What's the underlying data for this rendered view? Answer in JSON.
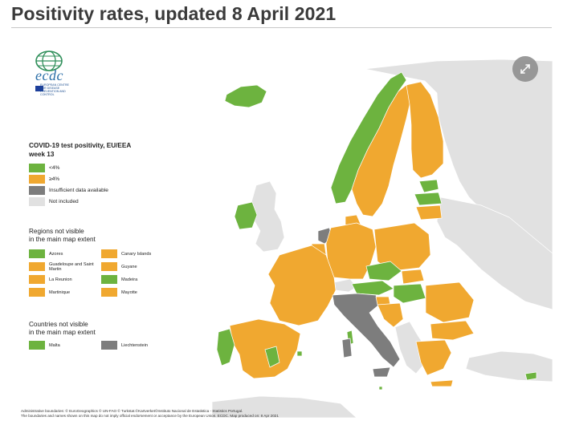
{
  "page": {
    "title": "Positivity rates, updated 8 April 2021"
  },
  "logo": {
    "wordmark": "ecdc",
    "organization": "EUROPEAN CENTRE FOR DISEASE PREVENTION AND CONTROL"
  },
  "colors": {
    "low": "#6db33f",
    "high": "#f0a830",
    "insufficient": "#7d7d7d",
    "not_included": "#e1e1e1",
    "sea": "#ffffff",
    "border": "#ffffff"
  },
  "legend": {
    "title_line1": "COVID-19 test positivity, EU/EEA",
    "title_line2": "week 13",
    "items": [
      {
        "label": "<4%",
        "color": "#6db33f"
      },
      {
        "label": "≥4%",
        "color": "#f0a830"
      },
      {
        "label": "Insufficient data available",
        "color": "#7d7d7d"
      },
      {
        "label": "Not included",
        "color": "#e1e1e1"
      }
    ]
  },
  "regions_not_visible": {
    "title_line1": "Regions not visible",
    "title_line2": "in the main map extent",
    "items": [
      {
        "label": "Azores",
        "color": "#6db33f"
      },
      {
        "label": "Canary Islands",
        "color": "#f0a830"
      },
      {
        "label": "Guadeloupe and Saint Martin",
        "color": "#f0a830"
      },
      {
        "label": "Guyane",
        "color": "#f0a830"
      },
      {
        "label": "La Reunion",
        "color": "#f0a830"
      },
      {
        "label": "Madeira",
        "color": "#6db33f"
      },
      {
        "label": "Martinique",
        "color": "#f0a830"
      },
      {
        "label": "Mayotte",
        "color": "#f0a830"
      }
    ]
  },
  "countries_not_visible": {
    "title_line1": "Countries not visible",
    "title_line2": "in the main map extent",
    "items": [
      {
        "label": "Malta",
        "color": "#6db33f"
      },
      {
        "label": "Liechtenstein",
        "color": "#7d7d7d"
      }
    ]
  },
  "footer": {
    "line1": "Administrative boundaries: © EuroGeographics © UN-FAO © Turkstat.©Kartverket©Instituto Nacional de Estatistica - Statistics Portugal.",
    "line2": "The boundaries and names shown on this map do not imply official endorsement or acceptance by the European Union. ECDC. Map produced on: 8 Apr 2021"
  },
  "map": {
    "icons": {
      "expand": "expand-icon"
    }
  }
}
